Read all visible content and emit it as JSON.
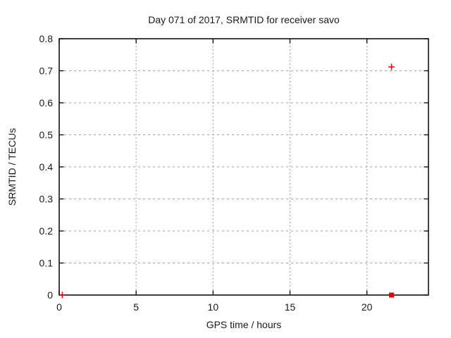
{
  "figure": {
    "background": "#ffffff"
  },
  "chart_data": {
    "type": "scatter",
    "title": "Day 071 of 2017, SRMTID for receiver savo",
    "xlabel": "GPS time / hours",
    "ylabel": "SRMTID / TECUs",
    "xlim": [
      0,
      24
    ],
    "ylim": [
      0,
      0.8
    ],
    "xticks": {
      "values": [
        0,
        5,
        10,
        15,
        20
      ],
      "labels": [
        "0",
        "5",
        "10",
        "15",
        "20"
      ]
    },
    "yticks": {
      "values": [
        0,
        0.1,
        0.2,
        0.3,
        0.4,
        0.5,
        0.6,
        0.7,
        0.8
      ],
      "labels": [
        "0",
        "0.1",
        "0.2",
        "0.3",
        "0.4",
        "0.5",
        "0.6",
        "0.7",
        "0.8"
      ]
    },
    "x_gridlines": [
      5,
      10,
      15,
      20
    ],
    "y_gridlines": [
      0.1,
      0.2,
      0.3,
      0.4,
      0.5,
      0.6,
      0.7
    ],
    "grid": true,
    "legend_position": "none",
    "colors": {
      "marker": "#e00000",
      "grid": "#a0a0a0",
      "border": "#000000",
      "text": "#1a1a1a"
    },
    "series": [
      {
        "name": "plus-markers",
        "marker": "plus",
        "color": "#e00000",
        "points": [
          [
            0.2,
            0.0
          ],
          [
            21.6,
            0.712
          ]
        ]
      },
      {
        "name": "square-markers",
        "marker": "filled-square",
        "color": "#e00000",
        "points": [
          [
            21.6,
            0.0
          ]
        ]
      }
    ]
  }
}
